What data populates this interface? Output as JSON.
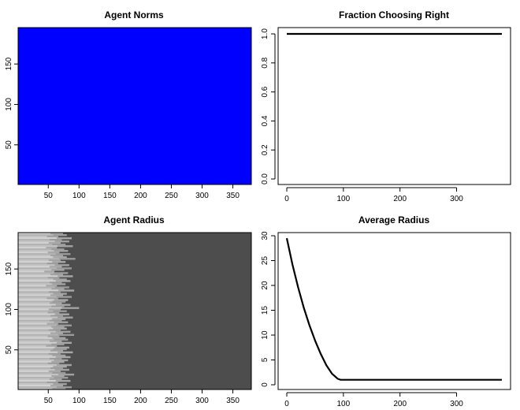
{
  "chart_data": [
    {
      "type": "heatmap",
      "title": "Agent Norms",
      "xlim": [
        1,
        380
      ],
      "ylim": [
        1,
        195
      ],
      "x_ticks": [
        50,
        100,
        150,
        200,
        250,
        300,
        350
      ],
      "y_ticks": [
        50,
        100,
        150
      ],
      "fill_color": "#0000ff",
      "note_values": "uniform cell value across all agents and time steps"
    },
    {
      "type": "line",
      "title": "Fraction Choosing Right",
      "xlim": [
        0,
        380
      ],
      "ylim": [
        0,
        1
      ],
      "x_ticks": [
        0,
        100,
        200,
        300
      ],
      "y_ticks": [
        "0.0",
        "0.2",
        "0.4",
        "0.6",
        "0.8",
        "1.0"
      ],
      "series": [
        {
          "x": [
            0,
            380
          ],
          "values": [
            1.0,
            1.0
          ]
        }
      ]
    },
    {
      "type": "heatmap",
      "title": "Agent Radius",
      "xlim": [
        1,
        380
      ],
      "ylim": [
        1,
        195
      ],
      "x_ticks": [
        50,
        100,
        150,
        200,
        250,
        300,
        350
      ],
      "y_ticks": [
        50,
        100,
        150
      ],
      "low_color": "#4d4d4d",
      "high_color": "#d9d9d9",
      "row_decay_end": [
        74,
        80,
        66,
        88,
        72,
        84,
        70,
        78,
        90,
        64,
        76,
        82,
        68,
        86,
        74,
        80,
        94,
        70,
        78,
        66,
        84,
        72,
        88,
        76,
        60,
        82,
        74,
        90,
        68,
        80,
        86,
        72,
        78,
        64,
        84,
        76,
        92,
        70,
        80,
        74,
        88,
        66,
        82,
        78,
        72,
        86,
        76,
        100,
        70,
        80,
        68,
        84,
        74,
        90,
        78,
        72,
        82,
        66,
        88,
        76,
        80,
        70,
        86,
        74,
        92,
        68,
        78,
        82,
        72,
        88,
        76,
        64,
        84,
        80,
        74,
        90,
        70,
        78,
        86,
        72,
        82,
        76,
        68,
        88,
        80,
        74,
        84,
        70,
        78,
        92,
        76,
        82,
        72,
        86,
        66,
        80,
        74,
        88,
        78
      ]
    },
    {
      "type": "line",
      "title": "Average Radius",
      "xlim": [
        0,
        380
      ],
      "ylim": [
        0,
        30
      ],
      "x_ticks": [
        0,
        100,
        200,
        300
      ],
      "y_ticks": [
        0,
        5,
        10,
        15,
        20,
        25,
        30
      ],
      "series": [
        {
          "x": [
            0,
            10,
            20,
            30,
            40,
            50,
            60,
            70,
            80,
            90,
            95,
            100,
            150,
            200,
            250,
            300,
            350,
            380
          ],
          "values": [
            29.5,
            24.2,
            19.6,
            15.5,
            12.0,
            8.9,
            6.2,
            3.9,
            2.2,
            1.2,
            1.0,
            1.0,
            1.0,
            1.0,
            1.0,
            1.0,
            1.0,
            1.0
          ]
        }
      ]
    }
  ]
}
